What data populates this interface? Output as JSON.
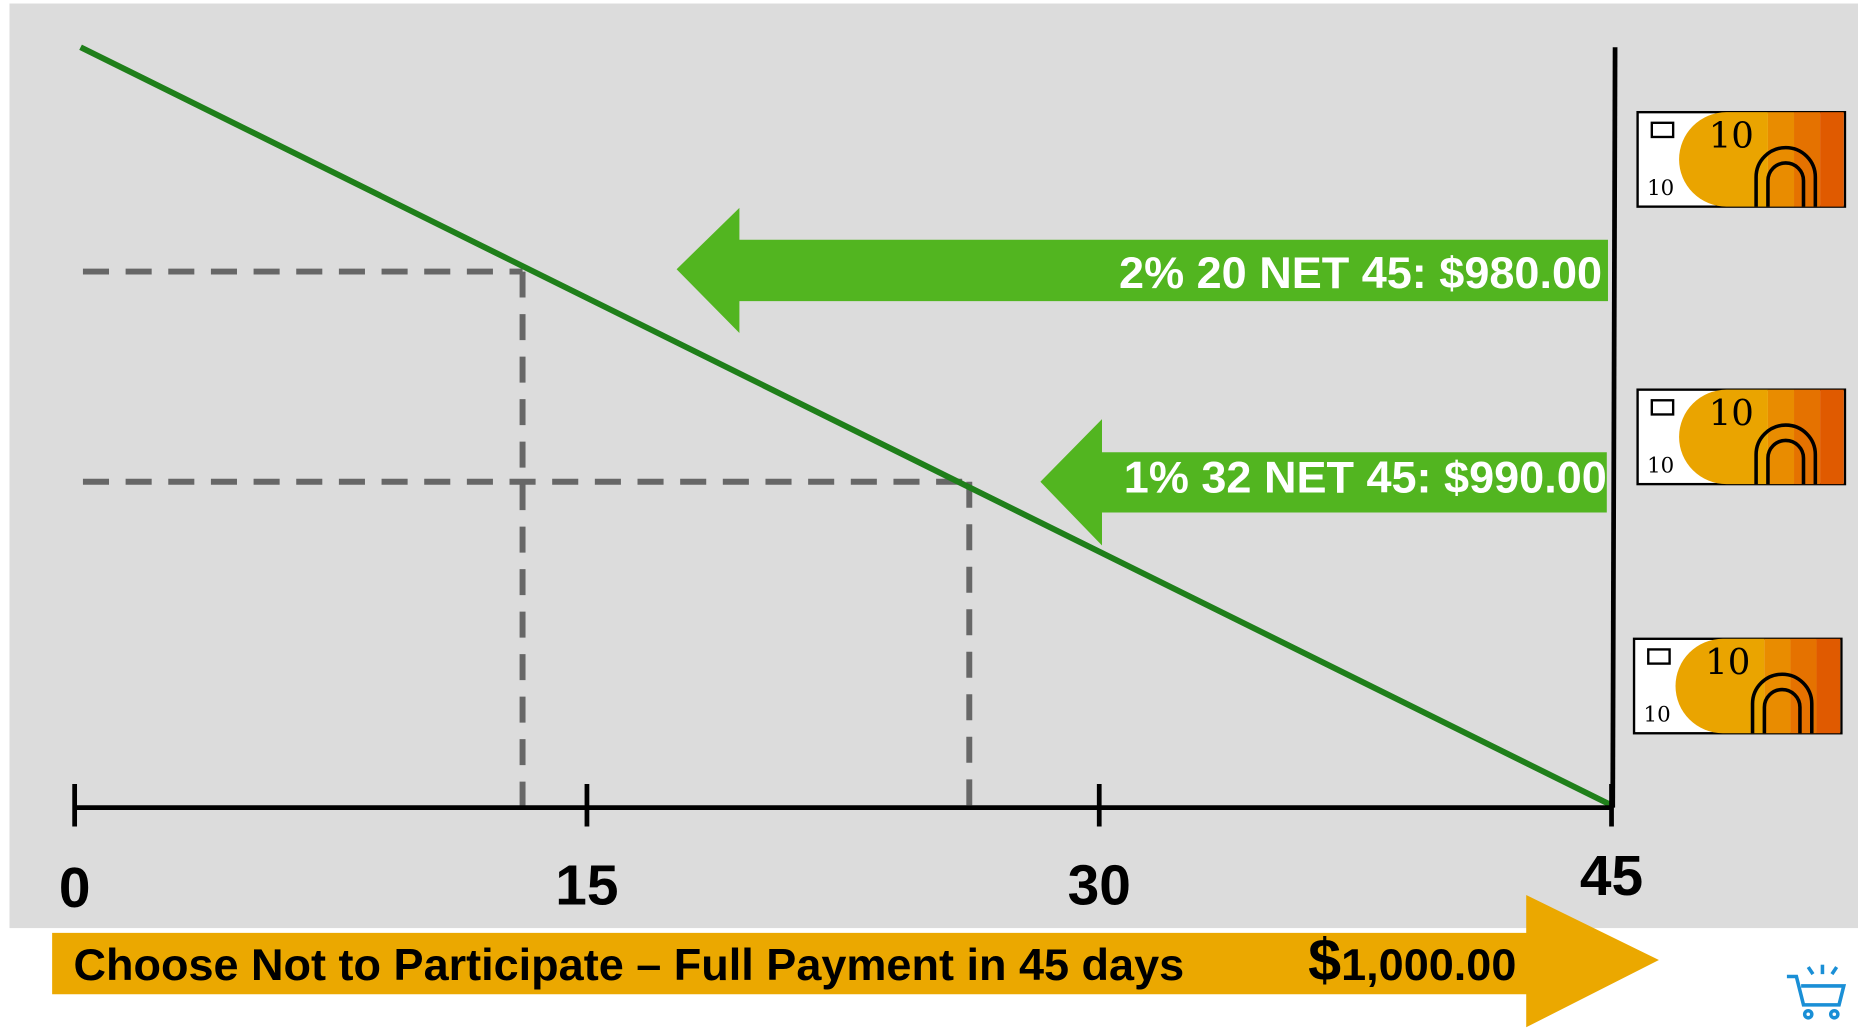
{
  "axis": {
    "ticks": [
      0,
      15,
      30,
      45
    ]
  },
  "arrows": [
    {
      "label": "2% 20 NET 45: $980.00"
    },
    {
      "label": "1% 32 NET 45: $990.00"
    }
  ],
  "footer": {
    "label": "Choose Not to Participate – Full Payment in 45 days",
    "currency": "$",
    "amount": "1,000.00"
  },
  "bill": {
    "value": "10",
    "corner": "10"
  }
}
